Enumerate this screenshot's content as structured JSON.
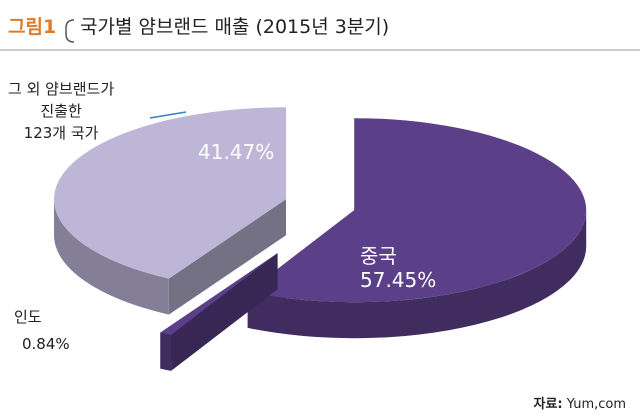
{
  "chart_data": {
    "type": "pie",
    "figure_label": "그림1",
    "title": "국가별 얌브랜드 매출 (2015년 3분기)",
    "categories": [
      "중국",
      "인도",
      "그 외 얌브랜드가\n진출한\n123개 국가"
    ],
    "values": [
      57.45,
      0.84,
      41.47
    ],
    "value_labels": [
      "57.45%",
      "0.84%",
      "41.47%"
    ],
    "colors": [
      "#5b3f88",
      "#5b3f88",
      "#bdb6d6"
    ],
    "source_label": "자료:",
    "source": "Yum,com"
  }
}
